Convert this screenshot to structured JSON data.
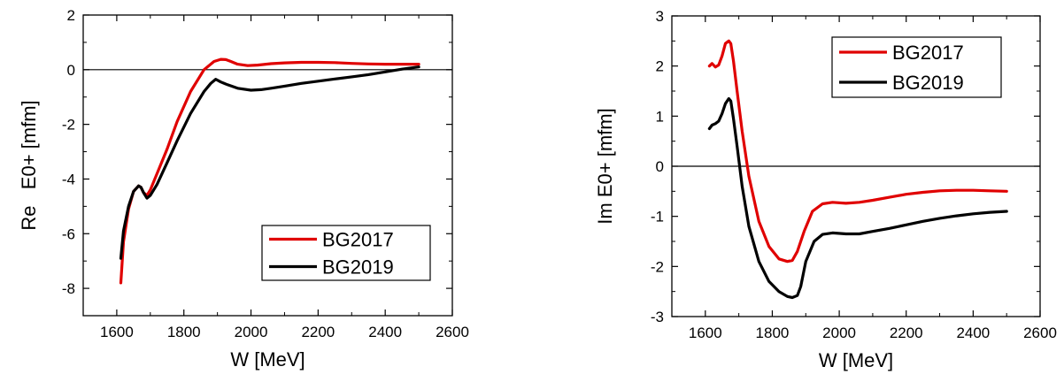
{
  "chart_data": [
    {
      "type": "line",
      "xlabel": "W [MeV]",
      "ylabel": "Re   E0+ [mfm]",
      "xlim": [
        1500,
        2600
      ],
      "ylim": [
        -9,
        2
      ],
      "xticks": [
        "1600",
        "1800",
        "2000",
        "2200",
        "2400",
        "2600"
      ],
      "yticks": [
        "2",
        "0",
        "-2",
        "-4",
        "-6",
        "-8"
      ],
      "zero_line": true,
      "legend_position": "bottom-right",
      "series": [
        {
          "name": "BG2017",
          "color": "#e00000",
          "x": [
            1612,
            1620,
            1635,
            1650,
            1665,
            1672,
            1680,
            1690,
            1700,
            1720,
            1750,
            1780,
            1820,
            1860,
            1890,
            1910,
            1925,
            1940,
            1960,
            1990,
            2020,
            2060,
            2100,
            2150,
            2200,
            2250,
            2300,
            2350,
            2400,
            2450,
            2500
          ],
          "y": [
            -7.8,
            -6.3,
            -5.1,
            -4.45,
            -4.25,
            -4.3,
            -4.5,
            -4.6,
            -4.4,
            -3.8,
            -2.9,
            -1.9,
            -0.8,
            0.0,
            0.3,
            0.38,
            0.37,
            0.3,
            0.2,
            0.15,
            0.17,
            0.22,
            0.25,
            0.27,
            0.27,
            0.26,
            0.23,
            0.21,
            0.2,
            0.2,
            0.2
          ]
        },
        {
          "name": "BG2019",
          "color": "#000000",
          "x": [
            1612,
            1620,
            1635,
            1650,
            1665,
            1672,
            1680,
            1690,
            1700,
            1720,
            1750,
            1780,
            1820,
            1860,
            1880,
            1895,
            1910,
            1930,
            1960,
            2000,
            2030,
            2060,
            2100,
            2150,
            2200,
            2250,
            2300,
            2350,
            2400,
            2450,
            2500
          ],
          "y": [
            -6.9,
            -5.9,
            -5.0,
            -4.45,
            -4.25,
            -4.3,
            -4.5,
            -4.7,
            -4.6,
            -4.2,
            -3.4,
            -2.6,
            -1.6,
            -0.8,
            -0.5,
            -0.35,
            -0.45,
            -0.55,
            -0.68,
            -0.75,
            -0.73,
            -0.68,
            -0.6,
            -0.5,
            -0.42,
            -0.34,
            -0.26,
            -0.18,
            -0.08,
            0.02,
            0.1
          ]
        }
      ]
    },
    {
      "type": "line",
      "xlabel": "W [MeV]",
      "ylabel": "Im E0+ [mfm]",
      "xlim": [
        1500,
        2600
      ],
      "ylim": [
        -3,
        3
      ],
      "xticks": [
        "1600",
        "1800",
        "2000",
        "2200",
        "2400",
        "2600"
      ],
      "yticks": [
        "3",
        "2",
        "1",
        "0",
        "-1",
        "-2",
        "-3"
      ],
      "zero_line": true,
      "legend_position": "top-right",
      "series": [
        {
          "name": "BG2017",
          "color": "#e00000",
          "x": [
            1612,
            1620,
            1630,
            1640,
            1650,
            1660,
            1670,
            1676,
            1684,
            1695,
            1710,
            1730,
            1760,
            1790,
            1820,
            1845,
            1860,
            1875,
            1895,
            1920,
            1950,
            1980,
            2020,
            2060,
            2100,
            2150,
            2200,
            2250,
            2300,
            2350,
            2400,
            2450,
            2500
          ],
          "y": [
            2.0,
            2.05,
            1.98,
            2.02,
            2.2,
            2.45,
            2.5,
            2.45,
            2.1,
            1.5,
            0.7,
            -0.2,
            -1.1,
            -1.6,
            -1.85,
            -1.9,
            -1.88,
            -1.7,
            -1.3,
            -0.9,
            -0.75,
            -0.72,
            -0.74,
            -0.72,
            -0.68,
            -0.62,
            -0.56,
            -0.52,
            -0.49,
            -0.48,
            -0.48,
            -0.49,
            -0.5
          ]
        },
        {
          "name": "BG2019",
          "color": "#000000",
          "x": [
            1612,
            1620,
            1630,
            1640,
            1650,
            1660,
            1670,
            1676,
            1684,
            1695,
            1710,
            1730,
            1760,
            1790,
            1820,
            1845,
            1860,
            1875,
            1885,
            1900,
            1925,
            1950,
            1980,
            2020,
            2060,
            2100,
            2150,
            2200,
            2250,
            2300,
            2350,
            2400,
            2450,
            2500
          ],
          "y": [
            0.75,
            0.82,
            0.85,
            0.9,
            1.05,
            1.25,
            1.35,
            1.3,
            0.95,
            0.4,
            -0.4,
            -1.2,
            -1.9,
            -2.3,
            -2.5,
            -2.6,
            -2.62,
            -2.58,
            -2.4,
            -1.9,
            -1.5,
            -1.36,
            -1.33,
            -1.35,
            -1.35,
            -1.3,
            -1.24,
            -1.17,
            -1.1,
            -1.04,
            -0.99,
            -0.95,
            -0.92,
            -0.9
          ]
        }
      ]
    }
  ]
}
